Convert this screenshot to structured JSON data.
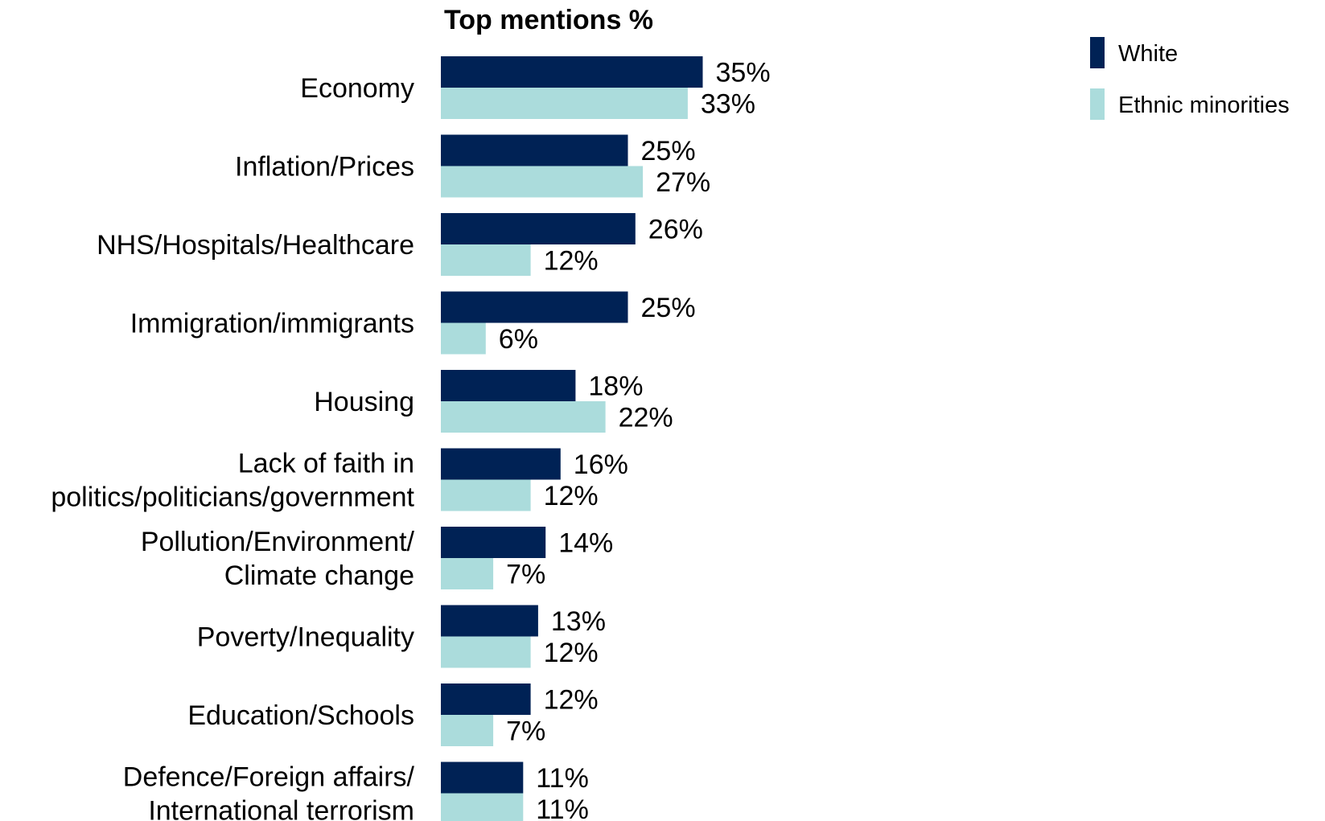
{
  "chart_data": {
    "type": "bar",
    "orientation": "horizontal",
    "title": "Top mentions %",
    "categories": [
      [
        "Economy"
      ],
      [
        "Inflation/Prices"
      ],
      [
        "NHS/Hospitals/Healthcare"
      ],
      [
        "Immigration/immigrants"
      ],
      [
        "Housing"
      ],
      [
        "Lack of faith in",
        "politics/politicians/government"
      ],
      [
        "Pollution/Environment/",
        "Climate change"
      ],
      [
        "Poverty/Inequality"
      ],
      [
        "Education/Schools"
      ],
      [
        "Defence/Foreign affairs/",
        "International terrorism"
      ]
    ],
    "series": [
      {
        "name": "White",
        "color": "#002255",
        "values": [
          35,
          25,
          26,
          25,
          18,
          16,
          14,
          13,
          12,
          11
        ],
        "labels": [
          "35%",
          "25%",
          "26%",
          "25%",
          "18%",
          "16%",
          "14%",
          "13%",
          "12%",
          "11%"
        ]
      },
      {
        "name": "Ethnic minorities",
        "color": "#abdcdc",
        "values": [
          33,
          27,
          12,
          6,
          22,
          12,
          7,
          12,
          7,
          11
        ],
        "labels": [
          "33%",
          "27%",
          "12%",
          "6%",
          "22%",
          "12%",
          "7%",
          "12%",
          "7%",
          "11%"
        ]
      }
    ],
    "xlim": [
      0,
      100
    ],
    "grid": false,
    "legend_position": "top-right"
  }
}
